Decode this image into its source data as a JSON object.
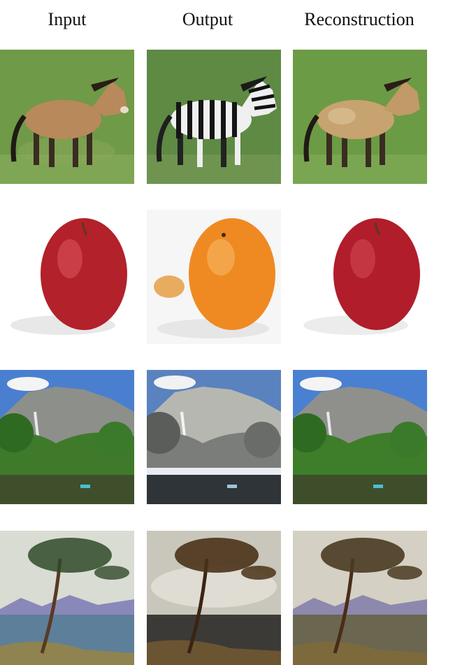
{
  "columns": [
    {
      "label": "Input"
    },
    {
      "label": "Output"
    },
    {
      "label": "Reconstruction"
    }
  ],
  "rows": [
    {
      "id": "horse",
      "cells": [
        {
          "content": "brown horse on grass"
        },
        {
          "content": "zebra on grass"
        },
        {
          "content": "reconstructed brown horse on grass"
        }
      ]
    },
    {
      "id": "apple",
      "cells": [
        {
          "content": "red apple on white background"
        },
        {
          "content": "orange on white background"
        },
        {
          "content": "reconstructed red apple on white background"
        }
      ]
    },
    {
      "id": "landscape",
      "cells": [
        {
          "content": "summer mountain valley with waterfall and river"
        },
        {
          "content": "winter mountain valley with snowy trees and river"
        },
        {
          "content": "reconstructed summer mountain valley"
        }
      ]
    },
    {
      "id": "painting",
      "cells": [
        {
          "content": "impressionist painting of a lone pine tree by the sea"
        },
        {
          "content": "photo-like rendering of the lone pine tree by the sea"
        },
        {
          "content": "reconstructed painting of the lone pine tree"
        }
      ]
    }
  ],
  "colors": {
    "grass": "#6f9a47",
    "horse": "#b8895a",
    "apple": "#b3212b",
    "orange": "#ef8a22",
    "sky": "#4a7fd0"
  }
}
